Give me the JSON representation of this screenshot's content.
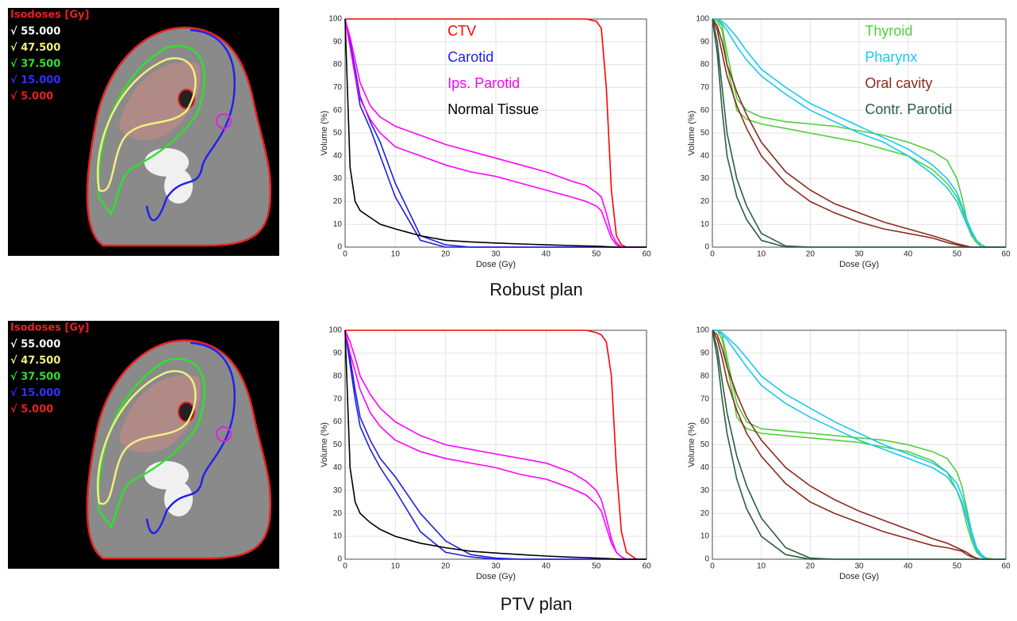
{
  "images": [
    {
      "legend_title": "Isodoses [Gy]",
      "legend_title_color": "#e82020",
      "levels": [
        {
          "label": "√ 55.000",
          "color": "#ffffff"
        },
        {
          "label": "√ 47.500",
          "color": "#f0f080"
        },
        {
          "label": "√ 37.500",
          "color": "#30e030"
        },
        {
          "label": "√ 15.000",
          "color": "#3030ff"
        },
        {
          "label": "√ 5.000",
          "color": "#e82020"
        }
      ]
    },
    {
      "legend_title": "Isodoses [Gy]",
      "legend_title_color": "#e82020",
      "levels": [
        {
          "label": "√ 55.000",
          "color": "#ffffff"
        },
        {
          "label": "√ 47.500",
          "color": "#f0f080"
        },
        {
          "label": "√ 37.500",
          "color": "#30e030"
        },
        {
          "label": "√ 15.000",
          "color": "#3030ff"
        },
        {
          "label": "√ 5.000",
          "color": "#e82020"
        }
      ]
    }
  ],
  "captions": [
    "Robust plan",
    "PTV plan"
  ],
  "chart_data": [
    {
      "type": "line",
      "x_label": "Dose (Gy)",
      "y_label": "Volume (%)",
      "grid": true,
      "legend": "upper center",
      "x": [
        0,
        1,
        2,
        3,
        5,
        7,
        10,
        15,
        20,
        25,
        30,
        35,
        40,
        45,
        48,
        50,
        51,
        52,
        53,
        54,
        55,
        56,
        58,
        60
      ],
      "xlim": [
        0,
        60
      ],
      "ylim": [
        0,
        100
      ],
      "xticks": [
        0,
        10,
        20,
        30,
        40,
        50,
        60
      ],
      "yticks": [
        0,
        10,
        20,
        30,
        40,
        50,
        60,
        70,
        80,
        90,
        100
      ],
      "series": [
        {
          "name": "CTV",
          "color": "#ff0000",
          "values": [
            100,
            100,
            100,
            100,
            100,
            100,
            100,
            100,
            100,
            100,
            100,
            100,
            100,
            100,
            100,
            99,
            96,
            70,
            25,
            5,
            1,
            0,
            0,
            0
          ]
        },
        {
          "name": "Carotid",
          "color": "#1f1fe0",
          "values": [
            100,
            90,
            78,
            66,
            55,
            46,
            28,
            5,
            1,
            0,
            0,
            0,
            0,
            0,
            0,
            0,
            0,
            0,
            0,
            0,
            0,
            0,
            0,
            0
          ]
        },
        {
          "color": "#1f1fe0",
          "values": [
            100,
            88,
            75,
            62,
            52,
            40,
            22,
            3,
            0,
            0,
            0,
            0,
            0,
            0,
            0,
            0,
            0,
            0,
            0,
            0,
            0,
            0,
            0,
            0
          ]
        },
        {
          "name": "Ips. Parotid",
          "color": "#ff00ff",
          "values": [
            100,
            88,
            75,
            65,
            56,
            50,
            44,
            40,
            36,
            33,
            31,
            28,
            25,
            22,
            20,
            18,
            16,
            10,
            4,
            1,
            0,
            0,
            0,
            0
          ]
        },
        {
          "color": "#ff00ff",
          "values": [
            100,
            92,
            82,
            72,
            62,
            57,
            53,
            49,
            45,
            42,
            39,
            36,
            33,
            29,
            27,
            24,
            22,
            15,
            6,
            2,
            0,
            0,
            0,
            0
          ]
        },
        {
          "name": "Normal Tissue",
          "color": "#000000",
          "values": [
            100,
            35,
            20,
            16,
            13,
            10,
            8,
            5,
            3,
            2.3,
            1.8,
            1.4,
            1,
            0.7,
            0.5,
            0.4,
            0.3,
            0.2,
            0.1,
            0,
            0,
            0,
            0,
            0
          ]
        }
      ]
    },
    {
      "type": "line",
      "x_label": "Dose (Gy)",
      "y_label": "Volume (%)",
      "grid": true,
      "legend": "upper right",
      "x": [
        0,
        1,
        2,
        3,
        5,
        7,
        10,
        15,
        20,
        25,
        30,
        35,
        40,
        45,
        48,
        50,
        51,
        52,
        53,
        54,
        55,
        56,
        58,
        60
      ],
      "xlim": [
        0,
        60
      ],
      "ylim": [
        0,
        100
      ],
      "xticks": [
        0,
        10,
        20,
        30,
        40,
        50,
        60
      ],
      "yticks": [
        0,
        10,
        20,
        30,
        40,
        50,
        60,
        70,
        80,
        90,
        100
      ],
      "series": [
        {
          "name": "Thyroid",
          "color": "#4fd03a",
          "values": [
            100,
            99,
            95,
            80,
            60,
            56,
            54,
            52,
            50,
            48,
            46,
            43,
            40,
            34,
            28,
            22,
            17,
            10,
            5,
            2,
            1,
            0,
            0,
            0
          ]
        },
        {
          "color": "#4fd03a",
          "values": [
            100,
            100,
            97,
            85,
            65,
            60,
            57,
            55,
            54,
            53,
            51,
            49,
            46,
            42,
            38,
            30,
            22,
            12,
            5,
            2,
            0,
            0,
            0,
            0
          ]
        },
        {
          "name": "Pharynx",
          "color": "#19c8f0",
          "values": [
            100,
            100,
            98,
            95,
            88,
            82,
            75,
            67,
            60,
            55,
            50,
            46,
            40,
            32,
            26,
            20,
            15,
            10,
            6,
            3,
            1,
            0,
            0,
            0
          ]
        },
        {
          "color": "#19c8f0",
          "values": [
            100,
            100,
            99,
            97,
            92,
            86,
            78,
            70,
            63,
            58,
            53,
            48,
            43,
            36,
            30,
            24,
            18,
            12,
            7,
            3,
            1,
            0,
            0,
            0
          ]
        },
        {
          "name": "Oral cavity",
          "color": "#8b2a1e",
          "values": [
            100,
            95,
            85,
            75,
            62,
            52,
            40,
            28,
            20,
            15,
            11,
            8,
            6,
            4,
            2,
            1,
            0.5,
            0,
            0,
            0,
            0,
            0,
            0,
            0
          ]
        },
        {
          "color": "#8b2a1e",
          "values": [
            100,
            97,
            90,
            80,
            68,
            58,
            46,
            33,
            25,
            19,
            15,
            11,
            8,
            5,
            3,
            1.5,
            1,
            0.5,
            0,
            0,
            0,
            0,
            0,
            0
          ]
        },
        {
          "name": "Contr. Parotid",
          "color": "#2a5e40",
          "values": [
            100,
            85,
            60,
            40,
            22,
            12,
            3,
            0,
            0,
            0,
            0,
            0,
            0,
            0,
            0,
            0,
            0,
            0,
            0,
            0,
            0,
            0,
            0,
            0
          ]
        },
        {
          "color": "#2a5e40",
          "values": [
            100,
            90,
            70,
            50,
            30,
            18,
            6,
            0.5,
            0,
            0,
            0,
            0,
            0,
            0,
            0,
            0,
            0,
            0,
            0,
            0,
            0,
            0,
            0,
            0
          ]
        }
      ]
    },
    {
      "type": "line",
      "x_label": "Dose (Gy)",
      "y_label": "Volume (%)",
      "grid": true,
      "x": [
        0,
        1,
        2,
        3,
        5,
        7,
        10,
        15,
        20,
        25,
        30,
        35,
        40,
        45,
        48,
        50,
        51,
        52,
        53,
        54,
        55,
        56,
        58,
        60
      ],
      "xlim": [
        0,
        60
      ],
      "ylim": [
        0,
        100
      ],
      "xticks": [
        0,
        10,
        20,
        30,
        40,
        50,
        60
      ],
      "yticks": [
        0,
        10,
        20,
        30,
        40,
        50,
        60,
        70,
        80,
        90,
        100
      ],
      "series": [
        {
          "color": "#ff0000",
          "values": [
            100,
            100,
            100,
            100,
            100,
            100,
            100,
            100,
            100,
            100,
            100,
            100,
            100,
            100,
            100,
            99,
            98,
            95,
            80,
            40,
            12,
            3,
            0,
            0
          ]
        },
        {
          "color": "#1f1fe0",
          "values": [
            100,
            85,
            70,
            58,
            48,
            40,
            30,
            12,
            3,
            1,
            0,
            0,
            0,
            0,
            0,
            0,
            0,
            0,
            0,
            0,
            0,
            0,
            0,
            0
          ]
        },
        {
          "color": "#1f1fe0",
          "values": [
            100,
            88,
            74,
            62,
            52,
            44,
            36,
            20,
            8,
            2,
            0.5,
            0,
            0,
            0,
            0,
            0,
            0,
            0,
            0,
            0,
            0,
            0,
            0,
            0
          ]
        },
        {
          "color": "#ff00ff",
          "values": [
            100,
            90,
            82,
            74,
            64,
            58,
            52,
            47,
            44,
            42,
            40,
            37,
            35,
            31,
            28,
            24,
            21,
            14,
            7,
            3,
            1,
            0,
            0,
            0
          ]
        },
        {
          "color": "#ff00ff",
          "values": [
            100,
            95,
            88,
            80,
            72,
            66,
            60,
            54,
            50,
            48,
            46,
            44,
            42,
            38,
            34,
            30,
            26,
            18,
            9,
            3,
            1,
            0,
            0,
            0
          ]
        },
        {
          "color": "#000000",
          "values": [
            100,
            40,
            25,
            20,
            16,
            13,
            10,
            7,
            5,
            3.5,
            2.7,
            2,
            1.4,
            0.9,
            0.7,
            0.5,
            0.4,
            0.3,
            0.2,
            0.1,
            0,
            0,
            0,
            0
          ]
        }
      ]
    },
    {
      "type": "line",
      "x_label": "Dose (Gy)",
      "y_label": "Volume (%)",
      "grid": true,
      "x": [
        0,
        1,
        2,
        3,
        5,
        7,
        10,
        15,
        20,
        25,
        30,
        35,
        40,
        45,
        48,
        50,
        51,
        52,
        53,
        54,
        55,
        56,
        58,
        60
      ],
      "xlim": [
        0,
        60
      ],
      "ylim": [
        0,
        100
      ],
      "xticks": [
        0,
        10,
        20,
        30,
        40,
        50,
        60
      ],
      "yticks": [
        0,
        10,
        20,
        30,
        40,
        50,
        60,
        70,
        80,
        90,
        100
      ],
      "series": [
        {
          "color": "#4fd03a",
          "values": [
            100,
            100,
            96,
            85,
            62,
            57,
            55,
            54,
            53,
            52,
            51,
            49,
            47,
            43,
            38,
            30,
            24,
            15,
            8,
            3,
            1,
            0,
            0,
            0
          ]
        },
        {
          "color": "#4fd03a",
          "values": [
            100,
            100,
            98,
            88,
            68,
            60,
            57,
            56,
            55,
            54,
            53,
            52,
            50,
            47,
            44,
            38,
            32,
            22,
            12,
            5,
            2,
            0.5,
            0,
            0
          ]
        },
        {
          "color": "#19c8f0",
          "values": [
            100,
            100,
            98,
            96,
            90,
            84,
            76,
            68,
            62,
            57,
            52,
            48,
            44,
            40,
            36,
            30,
            25,
            18,
            10,
            4,
            1,
            0,
            0,
            0
          ]
        },
        {
          "color": "#19c8f0",
          "values": [
            100,
            100,
            99,
            97,
            93,
            88,
            80,
            72,
            66,
            60,
            55,
            50,
            46,
            42,
            38,
            33,
            28,
            20,
            12,
            5,
            2,
            0,
            0,
            0
          ]
        },
        {
          "color": "#8b2a1e",
          "values": [
            100,
            96,
            88,
            78,
            65,
            55,
            45,
            33,
            25,
            20,
            16,
            12,
            9,
            6,
            5,
            4,
            3.5,
            2,
            1,
            0.5,
            0,
            0,
            0,
            0
          ]
        },
        {
          "color": "#8b2a1e",
          "values": [
            100,
            98,
            92,
            84,
            72,
            62,
            52,
            40,
            32,
            26,
            21,
            17,
            13,
            9,
            7,
            5,
            4,
            3,
            1.5,
            0.5,
            0,
            0,
            0,
            0
          ]
        },
        {
          "color": "#2a5e40",
          "values": [
            100,
            88,
            70,
            55,
            35,
            22,
            10,
            2,
            0,
            0,
            0,
            0,
            0,
            0,
            0,
            0,
            0,
            0,
            0,
            0,
            0,
            0,
            0,
            0
          ]
        },
        {
          "color": "#2a5e40",
          "values": [
            100,
            92,
            78,
            64,
            45,
            32,
            18,
            5,
            0.5,
            0,
            0,
            0,
            0,
            0,
            0,
            0,
            0,
            0,
            0,
            0,
            0,
            0,
            0,
            0
          ]
        }
      ]
    }
  ]
}
